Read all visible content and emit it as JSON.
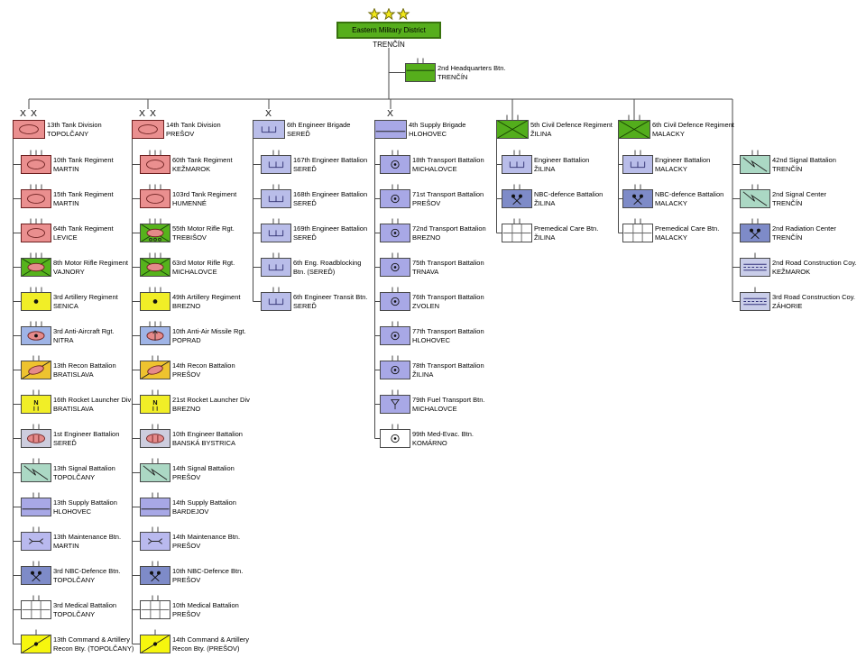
{
  "palette": {
    "connector": "#4a4a4a",
    "district_fill": "#56ae1c",
    "district_border": "#38720e",
    "star_fill": "#f2e81a",
    "star_stroke": "#6f6a08",
    "armor": "#ea8f8f",
    "motor-rifle": "#56b31c",
    "motor-rifle-wheeled": "#56b31c",
    "artillery": "#f1ee27",
    "anti-aircraft": "#9fb4e6",
    "aa-missile": "#9fb4e6",
    "recon": "#eec32f",
    "rocket-launcher": "#f1ee27",
    "engineer-armored": "#cdcdde",
    "signal": "#abd8c4",
    "supply": "#a8a8e6",
    "maintenance": "#b9b9ee",
    "nbc": "#7e8bc8",
    "medical": "#ffffff",
    "cmd-recon": "#f6f60e",
    "engineer": "#b9bde9",
    "transport": "#a8a8e6",
    "fuel": "#a8a8e6",
    "medevac": "#ffffff",
    "civil-defence": "#53ad1c",
    "radiation": "#7e8bc8",
    "road": "#c9cde9",
    "hq": "#56ae1c"
  },
  "root": {
    "label": "Eastern Military District",
    "location": "TRENČÍN",
    "stars": 3
  },
  "hq": {
    "label": "2nd Headquarters Btn.",
    "location": "TRENČÍN",
    "symbol": "hq",
    "echelon": "II"
  },
  "columns": [
    {
      "head": {
        "label": "13th Tank Division",
        "location": "TOPOLČANY",
        "symbol": "armor",
        "echelon": "XX"
      },
      "units": [
        {
          "label": "10th Tank Regiment",
          "location": "MARTIN",
          "symbol": "armor",
          "echelon": "III"
        },
        {
          "label": "15th Tank Regiment",
          "location": "MARTIN",
          "symbol": "armor",
          "echelon": "III"
        },
        {
          "label": "64th Tank Regiment",
          "location": "LEVICE",
          "symbol": "armor",
          "echelon": "III"
        },
        {
          "label": "8th Motor Rifle Regiment",
          "location": "VAJNORY",
          "symbol": "motor-rifle",
          "echelon": "III"
        },
        {
          "label": "3rd Artillery Regiment",
          "location": "SENICA",
          "symbol": "artillery",
          "echelon": "III"
        },
        {
          "label": "3rd Anti-Aircraft Rgt.",
          "location": "NITRA",
          "symbol": "anti-aircraft",
          "echelon": "III"
        },
        {
          "label": "13th Recon Battalion",
          "location": "BRATISLAVA",
          "symbol": "recon",
          "echelon": "II"
        },
        {
          "label": "16th Rocket Launcher Div",
          "location": "BRATISLAVA",
          "symbol": "rocket-launcher",
          "echelon": "II"
        },
        {
          "label": "1st Engineer Battalion",
          "location": "SEREĎ",
          "symbol": "engineer-armored",
          "echelon": "II"
        },
        {
          "label": "13th Signal Battalion",
          "location": "TOPOLČANY",
          "symbol": "signal",
          "echelon": "II"
        },
        {
          "label": "13th Supply Battalion",
          "location": "HLOHOVEC",
          "symbol": "supply",
          "echelon": "II"
        },
        {
          "label": "13th Maintenance Btn.",
          "location": "MARTIN",
          "symbol": "maintenance",
          "echelon": "II"
        },
        {
          "label": "3rd NBC-Defence Btn.",
          "location": "TOPOLČANY",
          "symbol": "nbc",
          "echelon": "II"
        },
        {
          "label": "3rd Medical Battalion",
          "location": "TOPOLČANY",
          "symbol": "medical",
          "echelon": "II"
        },
        {
          "label": "13th Command & Artillery",
          "location": "Recon Bty. (TOPOLČANY)",
          "symbol": "cmd-recon",
          "echelon": "I"
        }
      ]
    },
    {
      "head": {
        "label": "14th Tank Division",
        "location": "PREŠOV",
        "symbol": "armor",
        "echelon": "XX"
      },
      "units": [
        {
          "label": "60th Tank Regiment",
          "location": "KEŽMAROK",
          "symbol": "armor",
          "echelon": "III"
        },
        {
          "label": "103rd Tank Regiment",
          "location": "HUMENNÉ",
          "symbol": "armor",
          "echelon": "III"
        },
        {
          "label": "55th Motor Rifle Rgt.",
          "location": "TREBIŠOV",
          "symbol": "motor-rifle-wheeled",
          "echelon": "III"
        },
        {
          "label": "63rd Motor Rifle Rgt.",
          "location": "MICHALOVCE",
          "symbol": "motor-rifle",
          "echelon": "III"
        },
        {
          "label": "49th Artillery Regiment",
          "location": "BREZNO",
          "symbol": "artillery",
          "echelon": "III"
        },
        {
          "label": "10th Anti-Air Missile Rgt.",
          "location": "POPRAD",
          "symbol": "aa-missile",
          "echelon": "III"
        },
        {
          "label": "14th Recon Battalion",
          "location": "PREŠOV",
          "symbol": "recon",
          "echelon": "II"
        },
        {
          "label": "21st Rocket Launcher Div",
          "location": "BREZNO",
          "symbol": "rocket-launcher",
          "echelon": "II"
        },
        {
          "label": "10th Engineer Battalion",
          "location": "BANSKÁ BYSTRICA",
          "symbol": "engineer-armored",
          "echelon": "II"
        },
        {
          "label": "14th Signal Battalion",
          "location": "PREŠOV",
          "symbol": "signal",
          "echelon": "II"
        },
        {
          "label": "14th Supply Battalion",
          "location": "BARDEJOV",
          "symbol": "supply",
          "echelon": "II"
        },
        {
          "label": "14th Maintenance Btn.",
          "location": "PREŠOV",
          "symbol": "maintenance",
          "echelon": "II"
        },
        {
          "label": "10th NBC-Defence Btn.",
          "location": "PREŠOV",
          "symbol": "nbc",
          "echelon": "II"
        },
        {
          "label": "10th Medical Battalion",
          "location": "PREŠOV",
          "symbol": "medical",
          "echelon": "II"
        },
        {
          "label": "14th Command & Artillery",
          "location": "Recon Bty. (PREŠOV)",
          "symbol": "cmd-recon",
          "echelon": "I"
        }
      ]
    },
    {
      "head": {
        "label": "6th Engineer Brigade",
        "location": "SEREĎ",
        "symbol": "engineer",
        "echelon": "X"
      },
      "units": [
        {
          "label": "167th Engineer Battalion",
          "location": "SEREĎ",
          "symbol": "engineer",
          "echelon": "II"
        },
        {
          "label": "168th Engineer Battalion",
          "location": "SEREĎ",
          "symbol": "engineer",
          "echelon": "II"
        },
        {
          "label": "169th Engineer Battalion",
          "location": "SEREĎ",
          "symbol": "engineer",
          "echelon": "II"
        },
        {
          "label": "6th Eng. Roadblocking",
          "location": "Btn. (SEREĎ)",
          "symbol": "engineer",
          "echelon": "II"
        },
        {
          "label": "6th Engineer Transit Btn.",
          "location": "SEREĎ",
          "symbol": "engineer",
          "echelon": "II"
        }
      ]
    },
    {
      "head": {
        "label": "4th Supply Brigade",
        "location": "HLOHOVEC",
        "symbol": "supply",
        "echelon": "X"
      },
      "units": [
        {
          "label": "18th Transport Battalion",
          "location": "MICHALOVCE",
          "symbol": "transport",
          "echelon": "II"
        },
        {
          "label": "71st Transport Battalion",
          "location": "PREŠOV",
          "symbol": "transport",
          "echelon": "II"
        },
        {
          "label": "72nd Transport Battalion",
          "location": "BREZNO",
          "symbol": "transport",
          "echelon": "II"
        },
        {
          "label": "75th Transport Battalion",
          "location": "TRNAVA",
          "symbol": "transport",
          "echelon": "II"
        },
        {
          "label": "76th Transport Battalion",
          "location": "ZVOLEN",
          "symbol": "transport",
          "echelon": "II"
        },
        {
          "label": "77th Transport Battalion",
          "location": "HLOHOVEC",
          "symbol": "transport",
          "echelon": "II"
        },
        {
          "label": "78th Transport Battalion",
          "location": "ŽILINA",
          "symbol": "transport",
          "echelon": "II"
        },
        {
          "label": "79th Fuel Transport Btn.",
          "location": "MICHALOVCE",
          "symbol": "fuel",
          "echelon": "II"
        },
        {
          "label": "99th Med-Evac. Btn.",
          "location": "KOMÁRNO",
          "symbol": "medevac",
          "echelon": "II"
        }
      ]
    },
    {
      "head": {
        "label": "5th Civil Defence Regiment",
        "location": "ŽILINA",
        "symbol": "civil-defence",
        "echelon": "III"
      },
      "units": [
        {
          "label": "Engineer Battalion",
          "location": "ŽILINA",
          "symbol": "engineer",
          "echelon": "II"
        },
        {
          "label": "NBC-defence Battalion",
          "location": "ŽILINA",
          "symbol": "nbc",
          "echelon": "II"
        },
        {
          "label": "Premedical Care Btn.",
          "location": "ŽILINA",
          "symbol": "medical",
          "echelon": "II"
        }
      ]
    },
    {
      "head": {
        "label": "6th Civil Defence Regiment",
        "location": "MALACKY",
        "symbol": "civil-defence",
        "echelon": "III"
      },
      "units": [
        {
          "label": "Engineer Battalion",
          "location": "MALACKY",
          "symbol": "engineer",
          "echelon": "II"
        },
        {
          "label": "NBC-defence Battalion",
          "location": "MALACKY",
          "symbol": "nbc",
          "echelon": "II"
        },
        {
          "label": "Premedical Care Btn.",
          "location": "MALACKY",
          "symbol": "medical",
          "echelon": "II"
        }
      ]
    },
    {
      "head": null,
      "units": [
        {
          "label": "42nd Signal Battalion",
          "location": "TRENČÍN",
          "symbol": "signal",
          "echelon": "II"
        },
        {
          "label": "2nd Signal Center",
          "location": "TRENČÍN",
          "symbol": "signal",
          "echelon": "II"
        },
        {
          "label": "2nd Radiation Center",
          "location": "TRENČÍN",
          "symbol": "radiation",
          "echelon": "II"
        },
        {
          "label": "2nd Road Construction Coy.",
          "location": "KEŽMAROK",
          "symbol": "road",
          "echelon": "I"
        },
        {
          "label": "3rd Road Construction Coy.",
          "location": "ZÁHORIE",
          "symbol": "road",
          "echelon": "I"
        }
      ]
    }
  ]
}
